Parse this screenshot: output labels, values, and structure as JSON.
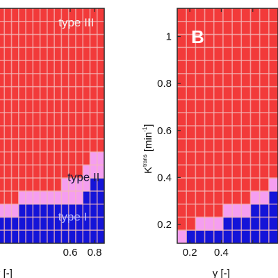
{
  "chart_data": [
    {
      "type": "heatmap",
      "panel_label": "",
      "xlabel": "γ  [-]",
      "ylabel": "",
      "xlim": [
        0.0,
        0.88
      ],
      "ylim": [
        0.1,
        1.14
      ],
      "xticks": [
        0.6,
        0.8
      ],
      "yticks": [],
      "grid_columns": 15,
      "grid_rows": 18,
      "region_boundaries": {
        "x": [
          0.0,
          0.18,
          0.3,
          0.42,
          0.55,
          0.62,
          0.68,
          0.72,
          0.78,
          0.88
        ],
        "type_II_lower": [
          0.24,
          0.24,
          0.27,
          0.27,
          0.27,
          0.3,
          0.3,
          0.33,
          0.36,
          0.39
        ],
        "type_III_lower": [
          0.27,
          0.3,
          0.33,
          0.36,
          0.36,
          0.39,
          0.42,
          0.45,
          0.48,
          0.48
        ]
      },
      "region_labels": [
        {
          "text": "type III",
          "x": 0.65,
          "y": 1.06,
          "color": "#f4f4f4"
        },
        {
          "text": "type II",
          "x": 0.71,
          "y": 0.375,
          "color": "#1a1a3a"
        },
        {
          "text": "type I",
          "x": 0.62,
          "y": 0.2,
          "color": "#b9b9ff"
        }
      ]
    },
    {
      "type": "heatmap",
      "panel_label": "B",
      "xlabel": "γ  [-]",
      "ylabel": "K",
      "ylabel_superscript": "trans",
      "ylabel_unit": "[min",
      "ylabel_unit_exp": "-1",
      "ylabel_unit_close": "]",
      "xlim": [
        0.12,
        0.76
      ],
      "ylim": [
        0.12,
        1.12
      ],
      "xticks": [
        0.2,
        0.4,
        0.6
      ],
      "xtick_labels": [
        "0.2",
        "0.4",
        ""
      ],
      "yticks": [
        0.2,
        0.4,
        0.6,
        0.8,
        1.0
      ],
      "ytick_labels": [
        "0.2",
        "0.4",
        "0.6",
        "0.8",
        "1"
      ],
      "grid_columns": 11,
      "grid_rows": 18,
      "region_boundaries": {
        "x": [
          0.12,
          0.2,
          0.28,
          0.35,
          0.45,
          0.55,
          0.62,
          0.68,
          0.76
        ],
        "type_II_lower": [
          0.12,
          0.15,
          0.18,
          0.18,
          0.21,
          0.24,
          0.27,
          0.3,
          0.33
        ],
        "type_III_lower": [
          0.15,
          0.18,
          0.21,
          0.24,
          0.27,
          0.3,
          0.33,
          0.36,
          0.39
        ]
      }
    }
  ],
  "colors": {
    "type_I": "#1414d8",
    "type_II": "#f59ef0",
    "type_III": "#f23a3a",
    "cell_grid": "#f3b8b8",
    "frame": "#2a2a2a"
  }
}
